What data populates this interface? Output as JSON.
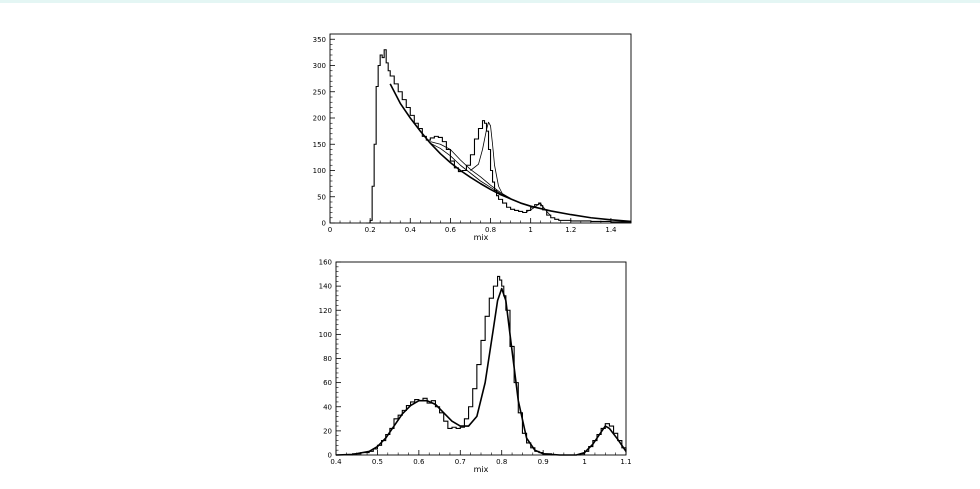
{
  "chart_data": [
    {
      "type": "line",
      "title": "",
      "xlabel": "mix",
      "ylabel": "",
      "xlim": [
        0,
        1.5
      ],
      "ylim": [
        0,
        360
      ],
      "x_ticks": [
        0,
        0.2,
        0.4,
        0.6,
        0.8,
        1,
        1.2,
        1.4
      ],
      "x_tick_labels": [
        "0",
        "0.2",
        "0.4",
        "0.6",
        "0.8",
        "1",
        "1.2",
        "1.4"
      ],
      "y_ticks": [
        0,
        50,
        100,
        150,
        200,
        250,
        300,
        350
      ],
      "y_tick_labels": [
        "0",
        "50",
        "100",
        "150",
        "200",
        "250",
        "300",
        "350"
      ],
      "grid": false,
      "series": [
        {
          "style": "histogram",
          "x": [
            0.18,
            0.2,
            0.21,
            0.22,
            0.23,
            0.24,
            0.25,
            0.26,
            0.27,
            0.28,
            0.29,
            0.3,
            0.32,
            0.34,
            0.36,
            0.38,
            0.4,
            0.42,
            0.44,
            0.46,
            0.48,
            0.5,
            0.52,
            0.54,
            0.56,
            0.58,
            0.6,
            0.62,
            0.64,
            0.66,
            0.68,
            0.7,
            0.72,
            0.74,
            0.76,
            0.77,
            0.78,
            0.79,
            0.8,
            0.81,
            0.82,
            0.83,
            0.84,
            0.86,
            0.88,
            0.9,
            0.92,
            0.94,
            0.96,
            0.98,
            1.0,
            1.02,
            1.04,
            1.05,
            1.06,
            1.08,
            1.1,
            1.12,
            1.14,
            1.2,
            1.3,
            1.4,
            1.5
          ],
          "y": [
            0,
            5,
            70,
            150,
            260,
            300,
            320,
            315,
            330,
            305,
            290,
            280,
            265,
            250,
            235,
            220,
            205,
            190,
            180,
            165,
            158,
            162,
            165,
            163,
            155,
            140,
            118,
            105,
            98,
            100,
            110,
            130,
            160,
            180,
            195,
            190,
            175,
            140,
            100,
            78,
            62,
            52,
            45,
            38,
            30,
            26,
            24,
            22,
            20,
            24,
            30,
            35,
            38,
            33,
            25,
            15,
            10,
            7,
            5,
            4,
            3,
            2,
            1
          ]
        },
        {
          "style": "smooth",
          "name": "",
          "x": [
            0.3,
            0.35,
            0.4,
            0.45,
            0.5,
            0.55,
            0.6,
            0.65,
            0.7,
            0.75,
            0.8,
            0.85,
            0.9,
            0.95,
            1.0,
            1.1,
            1.2,
            1.3,
            1.4,
            1.5
          ],
          "y": [
            265,
            228,
            200,
            175,
            152,
            132,
            115,
            100,
            87,
            75,
            64,
            54,
            46,
            38,
            32,
            23,
            16,
            10,
            6,
            3
          ]
        },
        {
          "style": "smooth",
          "name": "",
          "x": [
            0.5,
            0.55,
            0.6,
            0.65,
            0.7,
            0.75,
            0.8,
            0.85,
            0.9
          ],
          "y": [
            152,
            142,
            128,
            110,
            95,
            80,
            68,
            56,
            46
          ]
        },
        {
          "style": "smooth",
          "name": "",
          "x": [
            0.5,
            0.55,
            0.6,
            0.65,
            0.7,
            0.75,
            0.8,
            0.85,
            0.9
          ],
          "y": [
            155,
            150,
            140,
            120,
            102,
            88,
            72,
            58,
            47
          ]
        },
        {
          "style": "smooth",
          "name": "",
          "x": [
            0.7,
            0.74,
            0.76,
            0.78,
            0.79,
            0.8,
            0.81,
            0.82,
            0.84,
            0.86,
            0.88,
            0.9
          ],
          "y": [
            100,
            112,
            140,
            178,
            192,
            185,
            150,
            110,
            70,
            55,
            50,
            46
          ]
        },
        {
          "style": "smooth",
          "name": "",
          "x": [
            0.98,
            1.0,
            1.02,
            1.04,
            1.05,
            1.06,
            1.08,
            1.1
          ],
          "y": [
            22,
            25,
            30,
            36,
            37,
            32,
            22,
            14
          ]
        }
      ]
    },
    {
      "type": "line",
      "title": "",
      "xlabel": "mix",
      "ylabel": "",
      "xlim": [
        0.4,
        1.1
      ],
      "ylim": [
        0,
        160
      ],
      "x_ticks": [
        0.4,
        0.5,
        0.6,
        0.7,
        0.8,
        0.9,
        1,
        1.1
      ],
      "x_tick_labels": [
        "0.4",
        "0.5",
        "0.6",
        "0.7",
        "0.8",
        "0.9",
        "1",
        "1.1"
      ],
      "y_ticks": [
        0,
        20,
        40,
        60,
        80,
        100,
        120,
        140,
        160
      ],
      "y_tick_labels": [
        "0",
        "20",
        "40",
        "60",
        "80",
        "100",
        "120",
        "140",
        "160"
      ],
      "grid": false,
      "series": [
        {
          "style": "histogram",
          "x": [
            0.4,
            0.42,
            0.44,
            0.46,
            0.48,
            0.49,
            0.5,
            0.51,
            0.52,
            0.53,
            0.54,
            0.55,
            0.56,
            0.57,
            0.58,
            0.59,
            0.6,
            0.61,
            0.62,
            0.63,
            0.64,
            0.65,
            0.66,
            0.67,
            0.68,
            0.69,
            0.7,
            0.71,
            0.72,
            0.73,
            0.74,
            0.75,
            0.76,
            0.77,
            0.78,
            0.79,
            0.795,
            0.8,
            0.805,
            0.81,
            0.82,
            0.83,
            0.84,
            0.85,
            0.86,
            0.87,
            0.88,
            0.89,
            0.9,
            0.92,
            0.94,
            0.96,
            0.98,
            0.99,
            1.0,
            1.01,
            1.02,
            1.03,
            1.04,
            1.05,
            1.06,
            1.07,
            1.08,
            1.09,
            1.1
          ],
          "y": [
            0,
            0,
            1,
            2,
            3,
            5,
            8,
            12,
            17,
            22,
            30,
            33,
            37,
            41,
            44,
            46,
            45,
            47,
            43,
            45,
            40,
            35,
            28,
            22,
            23,
            22,
            23,
            30,
            40,
            55,
            75,
            95,
            115,
            130,
            140,
            148,
            145,
            140,
            132,
            120,
            90,
            60,
            35,
            18,
            10,
            6,
            3,
            2,
            1,
            0,
            0,
            0,
            0,
            1,
            3,
            7,
            12,
            17,
            22,
            26,
            24,
            18,
            12,
            6,
            2
          ]
        },
        {
          "style": "smooth",
          "name": "",
          "x": [
            0.4,
            0.44,
            0.48,
            0.5,
            0.52,
            0.54,
            0.56,
            0.58,
            0.6,
            0.62,
            0.64,
            0.66,
            0.68,
            0.7,
            0.72,
            0.74,
            0.76,
            0.78,
            0.79,
            0.8,
            0.81,
            0.82,
            0.84,
            0.86,
            0.88,
            0.9,
            0.94,
            0.98,
            1.0,
            1.02,
            1.04,
            1.05,
            1.06,
            1.08,
            1.1
          ],
          "y": [
            0,
            0.5,
            3,
            7,
            14,
            24,
            34,
            41,
            45,
            45,
            42,
            35,
            28,
            24,
            24,
            32,
            60,
            105,
            128,
            138,
            128,
            100,
            45,
            14,
            4,
            1,
            0,
            0,
            2,
            9,
            19,
            24,
            22,
            13,
            3
          ]
        }
      ]
    }
  ]
}
